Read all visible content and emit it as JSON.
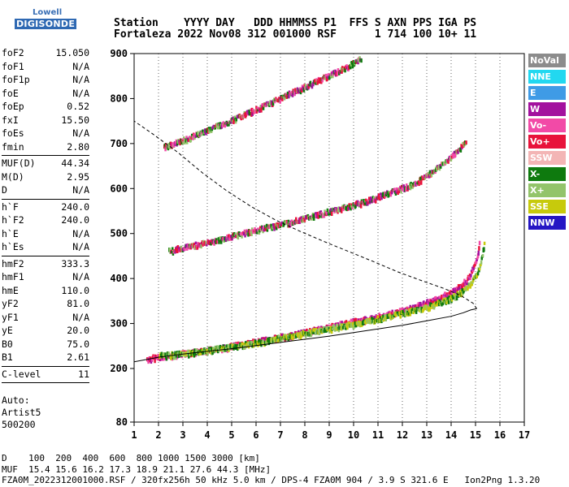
{
  "logo": {
    "line1": "Lowell",
    "line2": "DIGISONDE"
  },
  "header": {
    "line1": "Station    YYYY DAY   DDD HHMMSS P1  FFS S AXN PPS IGA PS",
    "line2": "Fortaleza 2022 Nov08 312 001000 RSF      1 714 100 10+ 11"
  },
  "params": [
    {
      "k": "foF2",
      "v": "15.050"
    },
    {
      "k": "foF1",
      "v": "N/A"
    },
    {
      "k": "foF1p",
      "v": "N/A"
    },
    {
      "k": "foE",
      "v": "N/A"
    },
    {
      "k": "foEp",
      "v": "0.52"
    },
    {
      "k": "fxI",
      "v": "15.50"
    },
    {
      "k": "foEs",
      "v": "N/A"
    },
    {
      "k": "fmin",
      "v": "2.80"
    },
    {
      "sep": true
    },
    {
      "k": "MUF(D)",
      "v": "44.34"
    },
    {
      "k": "M(D)",
      "v": "2.95"
    },
    {
      "k": "D",
      "v": "N/A"
    },
    {
      "sep": true
    },
    {
      "k": "h`F",
      "v": "240.0"
    },
    {
      "k": "h`F2",
      "v": "240.0"
    },
    {
      "k": "h`E",
      "v": "N/A"
    },
    {
      "k": "h`Es",
      "v": "N/A"
    },
    {
      "sep": true
    },
    {
      "k": "hmF2",
      "v": "333.3"
    },
    {
      "k": "hmF1",
      "v": "N/A"
    },
    {
      "k": "hmE",
      "v": "110.0"
    },
    {
      "k": "yF2",
      "v": "81.0"
    },
    {
      "k": "yF1",
      "v": "N/A"
    },
    {
      "k": "yE",
      "v": "20.0"
    },
    {
      "k": "B0",
      "v": "75.0"
    },
    {
      "k": "B1",
      "v": "2.61"
    },
    {
      "sep": true
    },
    {
      "k": "C-level",
      "v": "11"
    },
    {
      "sep": true
    }
  ],
  "auto": {
    "line1": "Auto:",
    "line2": "Artist5",
    "line3": "500200"
  },
  "legend": [
    {
      "label": "NoVal",
      "color": "#8c8c8c"
    },
    {
      "label": "NNE",
      "color": "#22d8f0"
    },
    {
      "label": "E",
      "color": "#3f9be6"
    },
    {
      "label": "W",
      "color": "#a3119e"
    },
    {
      "label": "Vo-",
      "color": "#f24aa7"
    },
    {
      "label": "Vo+",
      "color": "#e8133b"
    },
    {
      "label": "SSW",
      "color": "#f3b5b5"
    },
    {
      "label": "X-",
      "color": "#0e7a0e"
    },
    {
      "label": "X+",
      "color": "#93c46a"
    },
    {
      "label": "SSE",
      "color": "#c7ca0c"
    },
    {
      "label": "NNW",
      "color": "#2516c4"
    }
  ],
  "footer": {
    "line1": "D    100  200  400  600  800 1000 1500 3000 [km]",
    "line2": "MUF  15.4 15.6 16.2 17.3 18.9 21.1 27.6 44.3 [MHz]",
    "line3": "FZA0M_2022312001000.RSF / 320fx256h 50 kHz 5.0 km / DPS-4 FZA0M 904 / 3.9 S 321.6 E   Ion2Png 1.3.20"
  },
  "chart_data": {
    "type": "scatter",
    "xlim": [
      1,
      17
    ],
    "ylim": [
      80,
      900
    ],
    "xticks": [
      1,
      2,
      3,
      4,
      5,
      6,
      7,
      8,
      9,
      10,
      11,
      12,
      13,
      14,
      15,
      16,
      17
    ],
    "yticks": [
      80,
      200,
      300,
      400,
      500,
      600,
      700,
      800,
      900
    ],
    "traces": [
      {
        "name": "o-trace",
        "points": [
          [
            1.5,
            225
          ],
          [
            2.5,
            232
          ],
          [
            3.5,
            240
          ],
          [
            4.5,
            248
          ],
          [
            5.5,
            258
          ],
          [
            6.5,
            268
          ],
          [
            7.5,
            278
          ],
          [
            8.5,
            290
          ],
          [
            9.5,
            302
          ],
          [
            10.5,
            313
          ],
          [
            11.5,
            325
          ],
          [
            12.5,
            340
          ],
          [
            13.5,
            360
          ],
          [
            14.2,
            380
          ],
          [
            14.7,
            405
          ],
          [
            15.0,
            440
          ],
          [
            15.1,
            470
          ],
          [
            15.15,
            500
          ]
        ]
      },
      {
        "name": "x-trace",
        "points": [
          [
            2.0,
            232
          ],
          [
            3.0,
            236
          ],
          [
            4.0,
            244
          ],
          [
            5.0,
            252
          ],
          [
            6.0,
            260
          ],
          [
            7.0,
            272
          ],
          [
            8.0,
            282
          ],
          [
            9.0,
            292
          ],
          [
            10.0,
            302
          ],
          [
            11.0,
            314
          ],
          [
            12.0,
            326
          ],
          [
            13.0,
            340
          ],
          [
            14.0,
            360
          ],
          [
            14.6,
            380
          ],
          [
            15.0,
            410
          ],
          [
            15.2,
            440
          ],
          [
            15.3,
            470
          ],
          [
            15.35,
            485
          ]
        ]
      },
      {
        "name": "2-hop",
        "points": [
          [
            2.4,
            465
          ],
          [
            3.5,
            478
          ],
          [
            4.5,
            490
          ],
          [
            5.5,
            505
          ],
          [
            6.5,
            518
          ],
          [
            7.5,
            530
          ],
          [
            8.5,
            545
          ],
          [
            9.5,
            560
          ],
          [
            10.5,
            575
          ],
          [
            11.5,
            595
          ],
          [
            12.5,
            615
          ],
          [
            13.2,
            640
          ],
          [
            13.8,
            665
          ],
          [
            14.3,
            690
          ],
          [
            14.6,
            710
          ]
        ]
      },
      {
        "name": "3-hop",
        "points": [
          [
            2.2,
            695
          ],
          [
            3.2,
            715
          ],
          [
            4.2,
            738
          ],
          [
            5.2,
            760
          ],
          [
            6.2,
            785
          ],
          [
            7.2,
            810
          ],
          [
            8.2,
            835
          ],
          [
            9.2,
            860
          ],
          [
            10.1,
            885
          ],
          [
            10.3,
            895
          ]
        ]
      }
    ],
    "profile_solid": [
      [
        1.0,
        215
      ],
      [
        2.0,
        225
      ],
      [
        3.0,
        232
      ],
      [
        4.0,
        238
      ],
      [
        5.0,
        244
      ],
      [
        6.0,
        251
      ],
      [
        7.0,
        258
      ],
      [
        8.0,
        265
      ],
      [
        9.0,
        272
      ],
      [
        10.0,
        280
      ],
      [
        11.0,
        288
      ],
      [
        12.0,
        296
      ],
      [
        13.0,
        306
      ],
      [
        14.0,
        316
      ],
      [
        14.5,
        324
      ],
      [
        14.8,
        330
      ],
      [
        15.05,
        333
      ]
    ],
    "profile_dashed": [
      [
        15.05,
        333
      ],
      [
        14.9,
        345
      ],
      [
        14.4,
        362
      ],
      [
        13.7,
        378
      ],
      [
        12.8,
        395
      ],
      [
        11.8,
        415
      ],
      [
        10.8,
        438
      ],
      [
        9.8,
        460
      ],
      [
        8.8,
        482
      ],
      [
        7.8,
        505
      ],
      [
        6.8,
        530
      ],
      [
        5.8,
        560
      ],
      [
        4.8,
        595
      ],
      [
        3.8,
        635
      ],
      [
        2.8,
        680
      ],
      [
        1.8,
        720
      ],
      [
        1.0,
        750
      ]
    ]
  }
}
